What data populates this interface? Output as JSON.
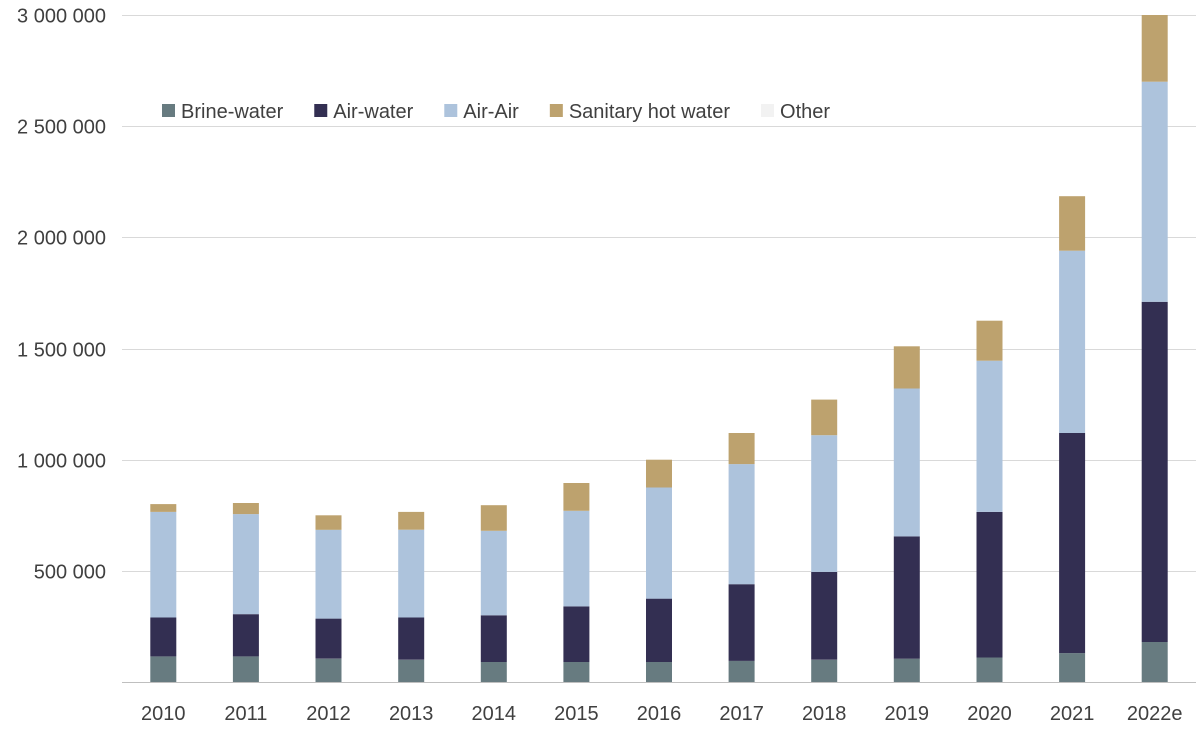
{
  "chart_data": {
    "type": "bar",
    "stacked": true,
    "title": "",
    "xlabel": "",
    "ylabel": "",
    "categories": [
      "2010",
      "2011",
      "2012",
      "2013",
      "2014",
      "2015",
      "2016",
      "2017",
      "2018",
      "2019",
      "2020",
      "2021",
      "2022e"
    ],
    "series": [
      {
        "name": "Brine-water",
        "color": "#677b80",
        "values": [
          115000,
          115000,
          105000,
          100000,
          90000,
          90000,
          90000,
          95000,
          100000,
          105000,
          110000,
          130000,
          180000
        ]
      },
      {
        "name": "Air-water",
        "color": "#332f52",
        "values": [
          175000,
          190000,
          180000,
          190000,
          210000,
          250000,
          285000,
          345000,
          395000,
          550000,
          655000,
          990000,
          1530000
        ]
      },
      {
        "name": "Air-Air",
        "color": "#adc3dc",
        "values": [
          475000,
          450000,
          400000,
          395000,
          380000,
          430000,
          500000,
          540000,
          615000,
          665000,
          680000,
          820000,
          990000
        ]
      },
      {
        "name": "Sanitary hot water",
        "color": "#bda26e",
        "values": [
          35000,
          50000,
          65000,
          80000,
          115000,
          125000,
          125000,
          140000,
          160000,
          190000,
          180000,
          245000,
          300000
        ]
      },
      {
        "name": "Other",
        "color": "#f2f2f2",
        "values": [
          0,
          0,
          0,
          0,
          0,
          0,
          0,
          0,
          0,
          0,
          0,
          0,
          0
        ]
      }
    ],
    "ylim": [
      0,
      3000000
    ],
    "yticks": [
      0,
      500000,
      1000000,
      1500000,
      2000000,
      2500000,
      3000000
    ],
    "ytick_labels": [
      "",
      "500 000",
      "1 000 000",
      "1 500 000",
      "2 000 000",
      "2 500 000",
      "3 000 000"
    ],
    "grid": true,
    "legend_position": "top-left"
  }
}
